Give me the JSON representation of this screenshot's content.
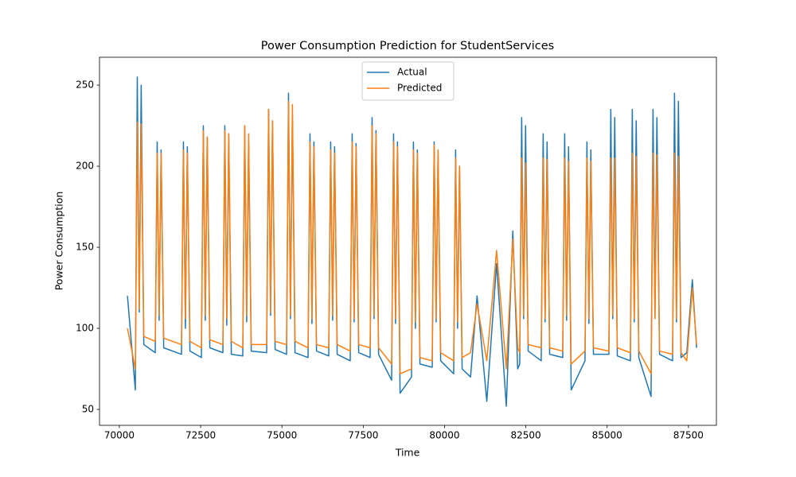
{
  "chart_data": {
    "type": "line",
    "title": "Power Consumption Prediction for StudentServices",
    "x_label": "Time",
    "y_label": "Power Consumption",
    "x": [
      70250,
      70492,
      70552,
      70612,
      70672,
      70752,
      71104,
      71164,
      71224,
      71284,
      71364,
      71911,
      71971,
      72031,
      72091,
      72171,
      72523,
      72583,
      72643,
      72703,
      72783,
      73184,
      73244,
      73304,
      73364,
      73444,
      73796,
      73856,
      73916,
      73976,
      74056,
      74530,
      74590,
      74650,
      74710,
      74790,
      75142,
      75202,
      75262,
      75322,
      75402,
      75803,
      75863,
      75923,
      75983,
      76063,
      76439,
      76499,
      76559,
      76619,
      76699,
      77100,
      77160,
      77220,
      77280,
      77360,
      77712,
      77772,
      77832,
      77892,
      77972,
      78373,
      78433,
      78493,
      78553,
      78633,
      78984,
      79044,
      79104,
      79164,
      79244,
      79621,
      79681,
      79741,
      79801,
      79881,
      80281,
      80341,
      80401,
      80461,
      80541,
      80800,
      81000,
      81300,
      81600,
      81900,
      82100,
      82250,
      82312,
      82372,
      82432,
      82492,
      82572,
      82973,
      83033,
      83093,
      83153,
      83233,
      83634,
      83694,
      83754,
      83814,
      83894,
      84319,
      84379,
      84439,
      84499,
      84579,
      85053,
      85113,
      85173,
      85233,
      85313,
      85714,
      85774,
      85834,
      85894,
      85974,
      86351,
      86411,
      86471,
      86531,
      86611,
      87012,
      87072,
      87132,
      87192,
      87272,
      87450,
      87620,
      87750
    ],
    "series": [
      {
        "name": "Actual",
        "color": "#1f77b4",
        "values": [
          120,
          62,
          255,
          110,
          250,
          90,
          85,
          215,
          105,
          210,
          88,
          84,
          215,
          100,
          212,
          86,
          82,
          225,
          105,
          218,
          88,
          85,
          225,
          102,
          220,
          84,
          83,
          225,
          104,
          215,
          86,
          85,
          235,
          108,
          228,
          87,
          84,
          245,
          106,
          232,
          85,
          82,
          220,
          103,
          215,
          86,
          83,
          215,
          105,
          212,
          84,
          80,
          220,
          104,
          214,
          85,
          82,
          230,
          106,
          222,
          84,
          68,
          220,
          103,
          215,
          60,
          70,
          215,
          100,
          210,
          78,
          76,
          215,
          104,
          208,
          80,
          72,
          210,
          100,
          200,
          75,
          70,
          120,
          55,
          140,
          52,
          160,
          75,
          78,
          230,
          106,
          225,
          86,
          80,
          220,
          104,
          215,
          84,
          82,
          220,
          105,
          212,
          62,
          80,
          215,
          103,
          210,
          84,
          84,
          235,
          106,
          230,
          83,
          80,
          235,
          104,
          228,
          82,
          58,
          235,
          106,
          230,
          84,
          80,
          245,
          104,
          240,
          82,
          85,
          130,
          88
        ]
      },
      {
        "name": "Predicted",
        "color": "#ff7f0e",
        "values": [
          100,
          75,
          227,
          112,
          226,
          95,
          92,
          208,
          108,
          208,
          94,
          90,
          210,
          106,
          208,
          92,
          88,
          222,
          108,
          218,
          93,
          90,
          222,
          106,
          220,
          92,
          88,
          225,
          108,
          220,
          90,
          90,
          235,
          110,
          228,
          92,
          90,
          240,
          108,
          238,
          92,
          88,
          215,
          106,
          212,
          90,
          88,
          210,
          108,
          208,
          90,
          86,
          215,
          106,
          212,
          90,
          88,
          225,
          108,
          220,
          88,
          78,
          215,
          106,
          212,
          72,
          75,
          210,
          104,
          208,
          82,
          80,
          213,
          106,
          210,
          85,
          80,
          205,
          104,
          200,
          82,
          85,
          115,
          80,
          148,
          75,
          155,
          88,
          85,
          205,
          108,
          202,
          90,
          88,
          205,
          106,
          204,
          88,
          86,
          205,
          108,
          203,
          78,
          86,
          205,
          106,
          203,
          88,
          86,
          205,
          108,
          205,
          88,
          85,
          208,
          106,
          206,
          86,
          72,
          208,
          106,
          207,
          86,
          84,
          208,
          106,
          206,
          85,
          80,
          125,
          90
        ]
      }
    ],
    "xlim": [
      69390,
      88360
    ],
    "ylim": [
      40.2,
      267.2
    ],
    "xticks": [
      70000,
      72500,
      75000,
      77500,
      80000,
      82500,
      85000,
      87500
    ],
    "yticks": [
      50,
      100,
      150,
      200,
      250
    ],
    "legend": "upper center"
  }
}
